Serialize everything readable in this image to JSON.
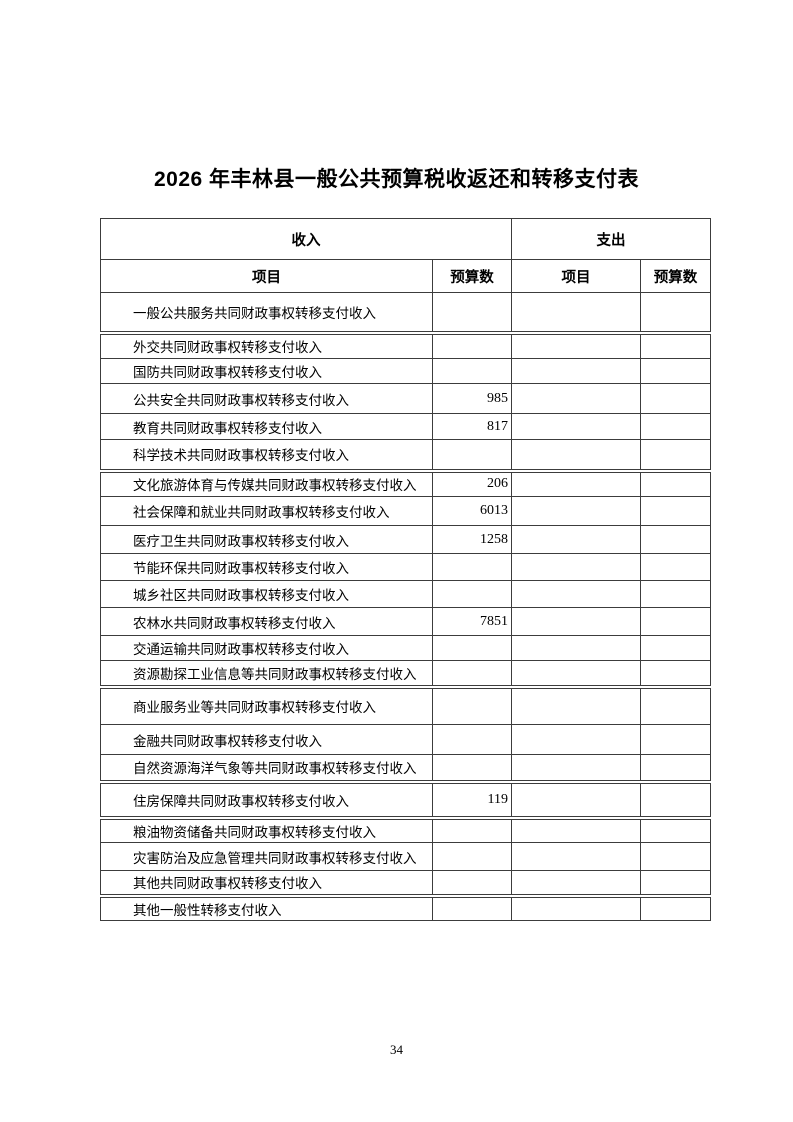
{
  "document": {
    "title": "2026 年丰林县一般公共预算税收返还和转移支付表",
    "page_number": "34"
  },
  "table": {
    "column_headers": {
      "income_group": "收入",
      "expense_group": "支出",
      "item": "项目",
      "budget": "预算数"
    },
    "income_rows": [
      {
        "item": "一般公共服务共同财政事权转移支付收入",
        "budget": ""
      },
      {
        "item": "外交共同财政事权转移支付收入",
        "budget": ""
      },
      {
        "item": "国防共同财政事权转移支付收入",
        "budget": ""
      },
      {
        "item": "公共安全共同财政事权转移支付收入",
        "budget": "985"
      },
      {
        "item": "教育共同财政事权转移支付收入",
        "budget": "817"
      },
      {
        "item": "科学技术共同财政事权转移支付收入",
        "budget": ""
      },
      {
        "item": "文化旅游体育与传媒共同财政事权转移支付收入",
        "budget": "206"
      },
      {
        "item": "社会保障和就业共同财政事权转移支付收入",
        "budget": "6013"
      },
      {
        "item": "医疗卫生共同财政事权转移支付收入",
        "budget": "1258"
      },
      {
        "item": "节能环保共同财政事权转移支付收入",
        "budget": ""
      },
      {
        "item": "城乡社区共同财政事权转移支付收入",
        "budget": ""
      },
      {
        "item": "农林水共同财政事权转移支付收入",
        "budget": "7851"
      },
      {
        "item": "交通运输共同财政事权转移支付收入",
        "budget": ""
      },
      {
        "item": "资源勘探工业信息等共同财政事权转移支付收入",
        "budget": ""
      },
      {
        "item": "商业服务业等共同财政事权转移支付收入",
        "budget": ""
      },
      {
        "item": "金融共同财政事权转移支付收入",
        "budget": ""
      },
      {
        "item": "自然资源海洋气象等共同财政事权转移支付收入",
        "budget": ""
      },
      {
        "item": "住房保障共同财政事权转移支付收入",
        "budget": "119"
      },
      {
        "item": "粮油物资储备共同财政事权转移支付收入",
        "budget": ""
      },
      {
        "item": "灾害防治及应急管理共同财政事权转移支付收入",
        "budget": ""
      },
      {
        "item": "其他共同财政事权转移支付收入",
        "budget": ""
      },
      {
        "item": "其他一般性转移支付收入",
        "budget": ""
      }
    ],
    "expense_rows": []
  }
}
